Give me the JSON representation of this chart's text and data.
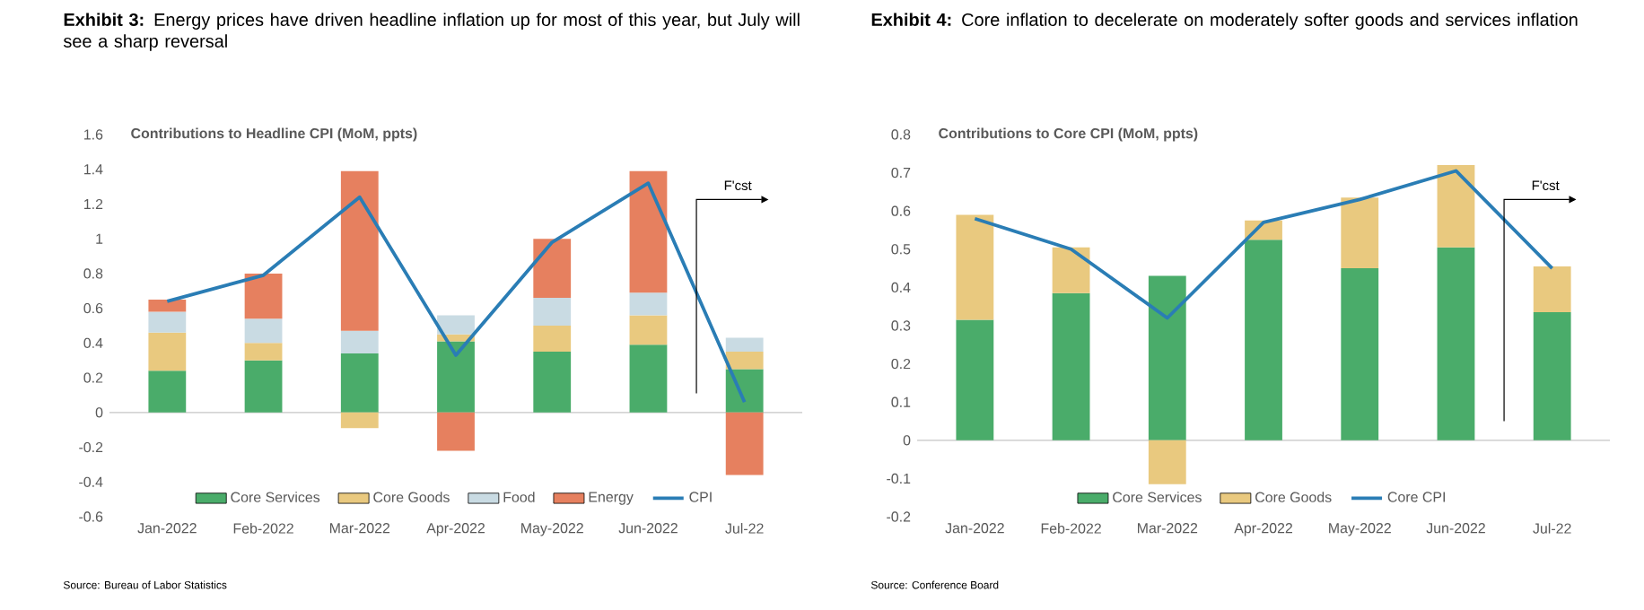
{
  "chart_data": [
    {
      "type": "bar",
      "title": "**Exhibit 3:** Energy prices have driven headline inflation up for most of this year, but July will see a sharp reversal",
      "subtitle": "Contributions to Headline CPI (MoM, ppts)",
      "categories": [
        "Jan-2022",
        "Feb-2022",
        "Mar-2022",
        "Apr-2022",
        "May-2022",
        "Jun-2022",
        "Jul-22"
      ],
      "stacked": true,
      "ylim": [
        -0.6,
        1.6
      ],
      "yticks": [
        -0.6,
        -0.4,
        -0.2,
        0,
        0.2,
        0.4,
        0.6,
        0.8,
        1,
        1.2,
        1.4,
        1.6
      ],
      "legend": "bottom",
      "series": [
        {
          "name": "Core Services",
          "color": "#4aac6a",
          "values": [
            0.24,
            0.3,
            0.34,
            0.41,
            0.35,
            0.39,
            0.25
          ]
        },
        {
          "name": "Core Goods",
          "color": "#e9c97f",
          "values": [
            0.22,
            0.1,
            -0.09,
            0.04,
            0.15,
            0.17,
            0.1
          ]
        },
        {
          "name": "Food",
          "color": "#c9dbe3",
          "values": [
            0.12,
            0.14,
            0.13,
            0.11,
            0.16,
            0.13,
            0.08
          ]
        },
        {
          "name": "Energy",
          "color": "#e6805f",
          "values": [
            0.07,
            0.26,
            0.92,
            -0.22,
            0.34,
            0.7,
            -0.36
          ]
        },
        {
          "name": "CPI",
          "type": "line",
          "color": "#2a7db5",
          "values": [
            0.64,
            0.79,
            1.24,
            0.33,
            0.98,
            1.32,
            0.06
          ]
        }
      ],
      "annotations": [
        "F'cst",
        "Source: Bureau of Labor Statistics"
      ]
    },
    {
      "type": "bar",
      "title": "**Exhibit 4:** Core inflation to decelerate on moderately softer goods and services inflation",
      "subtitle": "Contributions to Core CPI (MoM, ppts)",
      "categories": [
        "Jan-2022",
        "Feb-2022",
        "Mar-2022",
        "Apr-2022",
        "May-2022",
        "Jun-2022",
        "Jul-22"
      ],
      "stacked": true,
      "ylim": [
        -0.2,
        0.8
      ],
      "yticks": [
        -0.2,
        -0.1,
        0,
        0.1,
        0.2,
        0.3,
        0.4,
        0.5,
        0.6,
        0.7,
        0.8
      ],
      "legend": "bottom",
      "series": [
        {
          "name": "Core Services",
          "color": "#4aac6a",
          "values": [
            0.315,
            0.385,
            0.43,
            0.525,
            0.45,
            0.505,
            0.335
          ]
        },
        {
          "name": "Core Goods",
          "color": "#e9c97f",
          "values": [
            0.275,
            0.12,
            -0.115,
            0.05,
            0.185,
            0.215,
            0.12
          ]
        },
        {
          "name": "Core CPI",
          "type": "line",
          "color": "#2a7db5",
          "values": [
            0.58,
            0.5,
            0.32,
            0.57,
            0.63,
            0.705,
            0.45
          ]
        }
      ],
      "annotations": [
        "F'cst",
        "Source: Conference Board"
      ]
    }
  ]
}
